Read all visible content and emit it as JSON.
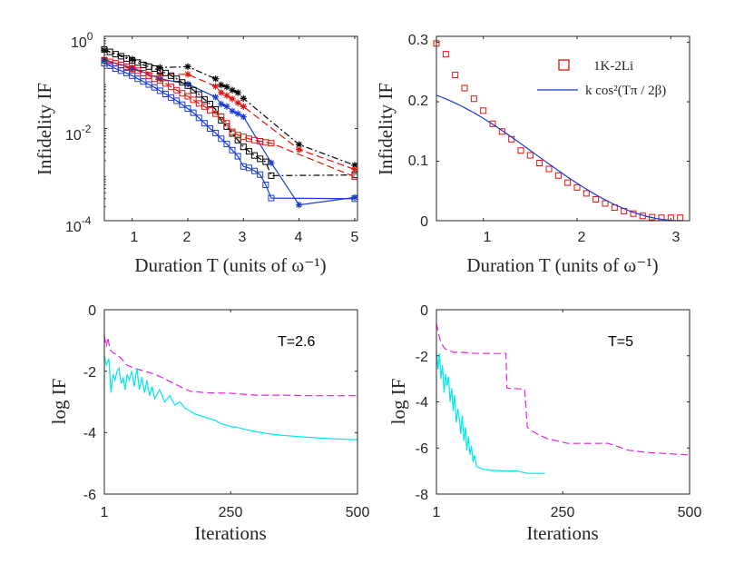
{
  "chart_data": [
    {
      "id": "a",
      "type": "line",
      "yscale": "log",
      "xlabel": "Duration T (units of ω⁻¹)",
      "ylabel": "Infidelity IF",
      "xlim": [
        0.5,
        5.05
      ],
      "ylim": [
        0.0001,
        1
      ],
      "xticks": [
        1,
        2,
        3,
        4,
        5
      ],
      "xtick_labels": [
        "1",
        "2",
        "3",
        "4",
        "5"
      ],
      "yticks": [
        0.0001,
        0.01,
        1
      ],
      "ytick_labels": [
        {
          "base": "10",
          "exp": "-4"
        },
        {
          "base": "10",
          "exp": "-2"
        },
        {
          "base": "10",
          "exp": "0"
        }
      ],
      "series": [
        {
          "name": "black * dash-dot",
          "color": "#000000",
          "dash": "7,3,2,3",
          "marker": "star",
          "x": [
            0.5,
            1.0,
            1.5,
            2.0,
            2.5,
            2.6,
            2.7,
            2.8,
            2.9,
            3.0,
            4.0,
            5.0
          ],
          "y": [
            0.5,
            0.32,
            0.21,
            0.22,
            0.12,
            0.088,
            0.08,
            0.068,
            0.06,
            0.045,
            0.0045,
            0.0016
          ]
        },
        {
          "name": "red * dashed",
          "color": "#e3120b",
          "dash": "8,4",
          "marker": "star",
          "x": [
            0.5,
            1.0,
            1.5,
            2.0,
            2.5,
            2.6,
            2.7,
            2.8,
            2.9,
            3.0,
            4.0,
            5.0
          ],
          "y": [
            0.32,
            0.19,
            0.15,
            0.15,
            0.082,
            0.06,
            0.052,
            0.044,
            0.036,
            0.03,
            0.0035,
            0.0013
          ]
        },
        {
          "name": "blue * solid",
          "color": "#1a3cd1",
          "dash": "",
          "marker": "star",
          "x": [
            0.5,
            1.0,
            1.5,
            2.0,
            2.5,
            2.6,
            2.7,
            2.8,
            2.9,
            3.0,
            3.5,
            4.0,
            5.0
          ],
          "y": [
            0.3,
            0.21,
            0.12,
            0.092,
            0.048,
            0.034,
            0.03,
            0.024,
            0.021,
            0.018,
            0.0018,
            0.00022,
            0.00032
          ]
        },
        {
          "name": "black square dash-dot",
          "color": "#000000",
          "dash": "7,3,2,3",
          "marker": "square",
          "x": [
            0.5,
            0.6,
            0.7,
            0.8,
            0.9,
            1.0,
            1.1,
            1.2,
            1.3,
            1.4,
            1.5,
            1.6,
            1.7,
            1.8,
            1.9,
            2.0,
            2.1,
            2.2,
            2.3,
            2.4,
            2.5,
            2.6,
            2.7,
            2.8,
            2.9,
            3.0,
            3.1,
            3.2,
            3.3,
            3.4,
            3.5,
            5.0
          ],
          "y": [
            0.52,
            0.46,
            0.41,
            0.37,
            0.33,
            0.3,
            0.27,
            0.24,
            0.22,
            0.2,
            0.18,
            0.16,
            0.14,
            0.12,
            0.1,
            0.085,
            0.068,
            0.055,
            0.043,
            0.034,
            0.026,
            0.015,
            0.011,
            0.0078,
            0.0056,
            0.004,
            0.0032,
            0.0026,
            0.0022,
            0.0019,
            0.00095,
            0.00098
          ]
        },
        {
          "name": "red square dashed",
          "color": "#e3120b",
          "dash": "8,4",
          "marker": "square",
          "x": [
            0.5,
            0.6,
            0.7,
            0.8,
            0.9,
            1.0,
            1.1,
            1.2,
            1.3,
            1.4,
            1.5,
            1.6,
            1.7,
            1.8,
            1.9,
            2.0,
            2.1,
            2.2,
            2.3,
            2.4,
            2.5,
            2.6,
            2.7,
            2.8,
            2.9,
            3.0,
            3.1,
            3.2,
            3.3,
            3.4,
            3.5,
            5.0
          ],
          "y": [
            0.3,
            0.28,
            0.26,
            0.24,
            0.22,
            0.2,
            0.18,
            0.16,
            0.14,
            0.12,
            0.11,
            0.095,
            0.08,
            0.068,
            0.058,
            0.05,
            0.042,
            0.035,
            0.03,
            0.025,
            0.021,
            0.018,
            0.013,
            0.0085,
            0.0072,
            0.0066,
            0.006,
            0.0056,
            0.0053,
            0.005,
            0.0048,
            0.0009
          ]
        },
        {
          "name": "blue square solid",
          "color": "#1a3cd1",
          "dash": "",
          "marker": "square",
          "x": [
            0.5,
            0.6,
            0.7,
            0.8,
            0.9,
            1.0,
            1.1,
            1.2,
            1.3,
            1.4,
            1.5,
            1.6,
            1.7,
            1.8,
            1.9,
            2.0,
            2.1,
            2.2,
            2.3,
            2.4,
            2.5,
            2.6,
            2.7,
            2.8,
            2.9,
            3.0,
            3.1,
            3.2,
            3.3,
            3.4,
            3.5,
            5.0
          ],
          "y": [
            0.26,
            0.23,
            0.2,
            0.18,
            0.16,
            0.14,
            0.12,
            0.105,
            0.09,
            0.078,
            0.066,
            0.056,
            0.047,
            0.04,
            0.033,
            0.027,
            0.022,
            0.017,
            0.013,
            0.01,
            0.008,
            0.006,
            0.0046,
            0.0034,
            0.0025,
            0.0015,
            0.0014,
            0.0012,
            0.001,
            0.0006,
            0.00031,
            0.0003
          ]
        }
      ]
    },
    {
      "id": "b",
      "type": "line",
      "xlabel": "Duration T (units of ω⁻¹)",
      "ylabel": "Infidelity IF",
      "xlim": [
        0.5,
        3.2
      ],
      "ylim": [
        0,
        0.31
      ],
      "xticks": [
        1,
        2,
        3
      ],
      "xtick_labels": [
        "1",
        "2",
        "3"
      ],
      "yticks": [
        0,
        0.1,
        0.2,
        0.3
      ],
      "ytick_labels": [
        "0",
        "0.1",
        "0.2",
        "0.3"
      ],
      "legend": {
        "location": "top-right",
        "entries": [
          "1K-2Li",
          "k cos²(Tπ / 2β)"
        ]
      },
      "series": [
        {
          "name": "1K-2Li",
          "color": "#e3120b",
          "marker": "square",
          "line": false,
          "x": [
            0.5,
            0.6,
            0.7,
            0.8,
            0.9,
            1.0,
            1.1,
            1.2,
            1.3,
            1.4,
            1.5,
            1.6,
            1.7,
            1.8,
            1.9,
            2.0,
            2.1,
            2.2,
            2.3,
            2.4,
            2.5,
            2.6,
            2.7,
            2.8,
            2.9,
            3.0,
            3.1
          ],
          "y": [
            0.298,
            0.28,
            0.245,
            0.223,
            0.205,
            0.185,
            0.163,
            0.15,
            0.137,
            0.118,
            0.11,
            0.097,
            0.087,
            0.076,
            0.064,
            0.056,
            0.046,
            0.036,
            0.029,
            0.022,
            0.016,
            0.012,
            0.008,
            0.006,
            0.005,
            0.005,
            0.005
          ]
        },
        {
          "name": "k cos²(Tπ / 2β)",
          "color": "#1a3cd1",
          "line": true,
          "marker": "none",
          "formula": {
            "k": 0.225,
            "beta": 3.1,
            "x_start": 0.5,
            "x_end": 3.1
          }
        }
      ]
    },
    {
      "id": "c",
      "type": "line",
      "xlabel": "Iterations",
      "ylabel": "log IF",
      "xlim": [
        1,
        500
      ],
      "ylim": [
        -6,
        0
      ],
      "xticks": [
        1,
        250,
        500
      ],
      "xtick_labels": [
        "1",
        "250",
        "500"
      ],
      "yticks": [
        -6,
        -4,
        -2,
        0
      ],
      "ytick_labels": [
        "-6",
        "-4",
        "-2",
        "0"
      ],
      "annotation": "T=2.6",
      "series": [
        {
          "name": "magenta dashed",
          "color": "#e025e0",
          "dash": "8,4",
          "x": [
            1,
            5,
            8,
            12,
            18,
            25,
            35,
            45,
            60,
            80,
            100,
            120,
            150,
            170,
            200,
            250,
            300,
            350,
            400,
            450,
            500
          ],
          "y": [
            -0.85,
            -1.2,
            -0.9,
            -1.3,
            -1.4,
            -1.45,
            -1.6,
            -1.8,
            -1.9,
            -2.0,
            -2.1,
            -2.25,
            -2.5,
            -2.65,
            -2.7,
            -2.72,
            -2.78,
            -2.78,
            -2.8,
            -2.8,
            -2.8
          ]
        },
        {
          "name": "cyan solid",
          "color": "#00e8e8",
          "dash": "",
          "x": [
            1,
            5,
            10,
            14,
            18,
            22,
            26,
            30,
            34,
            38,
            42,
            46,
            50,
            55,
            60,
            65,
            70,
            75,
            80,
            85,
            90,
            95,
            100,
            110,
            120,
            130,
            140,
            150,
            160,
            170,
            180,
            190,
            200,
            210,
            220,
            230,
            240,
            250,
            260,
            280,
            300,
            330,
            360,
            400,
            450,
            500
          ],
          "y": [
            -1.5,
            -1.8,
            -1.6,
            -2.7,
            -2.1,
            -2.3,
            -2.0,
            -1.9,
            -2.4,
            -2.2,
            -2.6,
            -2.1,
            -2.3,
            -2.0,
            -2.5,
            -1.9,
            -2.6,
            -2.2,
            -2.7,
            -2.3,
            -2.8,
            -2.5,
            -2.9,
            -2.6,
            -3.0,
            -2.8,
            -3.1,
            -3.0,
            -3.2,
            -3.3,
            -3.4,
            -3.45,
            -3.5,
            -3.55,
            -3.6,
            -3.7,
            -3.75,
            -3.8,
            -3.82,
            -3.9,
            -3.97,
            -4.05,
            -4.1,
            -4.15,
            -4.2,
            -4.23
          ]
        }
      ]
    },
    {
      "id": "d",
      "type": "line",
      "xlabel": "Iterations",
      "ylabel": "log IF",
      "xlim": [
        1,
        500
      ],
      "ylim": [
        -8,
        0
      ],
      "xticks": [
        1,
        250,
        500
      ],
      "xtick_labels": [
        "1",
        "250",
        "500"
      ],
      "yticks": [
        -8,
        -6,
        -4,
        -2,
        0
      ],
      "ytick_labels": [
        "-8",
        "-6",
        "-4",
        "-2",
        "0"
      ],
      "annotation": "T=5",
      "series": [
        {
          "name": "magenta dashed",
          "color": "#e025e0",
          "dash": "8,4",
          "x": [
            1,
            5,
            8,
            12,
            18,
            25,
            35,
            50,
            80,
            138,
            140,
            175,
            180,
            185,
            200,
            220,
            240,
            260,
            300,
            340,
            380,
            420,
            460,
            500
          ],
          "y": [
            -0.6,
            -1.0,
            -1.3,
            -1.5,
            -1.7,
            -1.75,
            -1.85,
            -1.85,
            -1.9,
            -1.9,
            -3.4,
            -3.45,
            -5.1,
            -5.2,
            -5.4,
            -5.6,
            -5.7,
            -5.8,
            -5.8,
            -5.8,
            -6.1,
            -6.2,
            -6.25,
            -6.3
          ]
        },
        {
          "name": "cyan solid",
          "color": "#00e8e8",
          "dash": "",
          "x": [
            1,
            4,
            7,
            10,
            13,
            16,
            19,
            22,
            25,
            28,
            31,
            34,
            37,
            40,
            43,
            46,
            49,
            52,
            55,
            58,
            61,
            64,
            67,
            70,
            73,
            76,
            80,
            85,
            90,
            100,
            120,
            140,
            160,
            180,
            200,
            215
          ],
          "y": [
            -1.8,
            -2.6,
            -1.9,
            -3.0,
            -2.4,
            -3.6,
            -2.8,
            -3.3,
            -2.9,
            -4.0,
            -3.4,
            -4.4,
            -3.7,
            -4.9,
            -4.3,
            -4.7,
            -5.4,
            -4.6,
            -5.7,
            -5.1,
            -6.1,
            -5.5,
            -6.3,
            -5.9,
            -6.6,
            -6.3,
            -6.8,
            -6.85,
            -6.9,
            -6.95,
            -6.98,
            -7.0,
            -7.0,
            -7.1,
            -7.1,
            -7.1
          ]
        }
      ]
    }
  ]
}
